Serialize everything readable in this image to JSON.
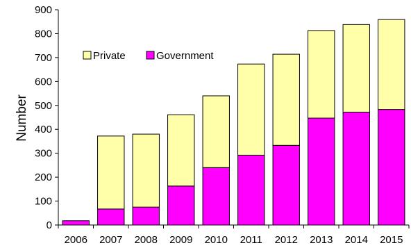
{
  "chart_data": {
    "type": "bar",
    "stacked": true,
    "categories": [
      "2006",
      "2007",
      "2008",
      "2009",
      "2010",
      "2011",
      "2012",
      "2013",
      "2014",
      "2015"
    ],
    "series": [
      {
        "name": "Government",
        "color": "#ff00ff",
        "values": [
          18,
          67,
          75,
          163,
          240,
          292,
          333,
          447,
          472,
          483
        ]
      },
      {
        "name": "Private",
        "color": "#ffffaa",
        "values": [
          0,
          305,
          305,
          298,
          300,
          381,
          381,
          366,
          366,
          376
        ]
      }
    ],
    "title": "",
    "xlabel": "",
    "ylabel": "Number",
    "ylim": [
      0,
      900
    ],
    "yticks": [
      0,
      100,
      200,
      300,
      400,
      500,
      600,
      700,
      800,
      900
    ],
    "grid": false,
    "legend_position": "top-left",
    "legend_order": [
      "Private",
      "Government"
    ]
  }
}
